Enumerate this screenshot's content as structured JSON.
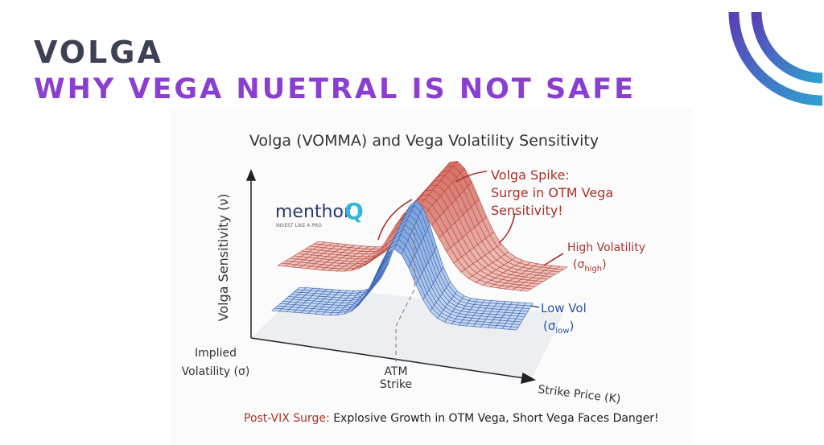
{
  "header": {
    "title": "VOLGA",
    "subtitle": "WHY VEGA NUETRAL IS NOT SAFE"
  },
  "figure": {
    "title": "Volga (VOMMA) and Vega Volatility Sensitivity",
    "y_axis_label": "Volga Sensitivity (ν)",
    "depth_axis_label": [
      "Implied",
      "Volatility (σ)"
    ],
    "x_axis_label": "Strike Price (K)",
    "atm_label": [
      "ATM",
      "Strike"
    ],
    "spike_annotation": [
      "Volga Spike:",
      "Surge in OTM Vega",
      "Sensitivity!"
    ],
    "high_vol": {
      "label": "High Volatility",
      "symbol": "(σ",
      "subscript": "high",
      "close": ")"
    },
    "low_vol": {
      "label": "Low Vol",
      "symbol": "(σ",
      "subscript": "low",
      "close": ")"
    },
    "logo": {
      "name": "menthor",
      "mark": "Q",
      "tagline": "INVEST LIKE A PRO"
    },
    "caption": {
      "lead": "Post-VIX Surge:",
      "text": " Explosive Growth in OTM Vega, Short Vega Faces Danger!"
    }
  }
}
